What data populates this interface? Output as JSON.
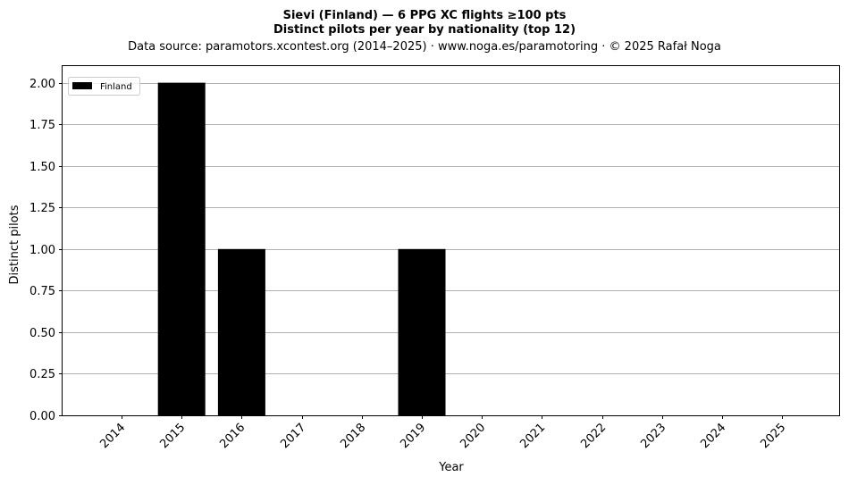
{
  "chart_data": {
    "type": "bar",
    "title_line1": "Sievi (Finland)  —  6 PPG XC flights ≥100 pts",
    "title_line2": "Distinct pilots per year by nationality (top 12)",
    "subtitle": "Data source: paramotors.xcontest.org (2014–2025)  ·  www.noga.es/paramotoring  ·  © 2025 Rafał Noga",
    "xlabel": "Year",
    "ylabel": "Distinct pilots",
    "categories": [
      "2014",
      "2015",
      "2016",
      "2017",
      "2018",
      "2019",
      "2020",
      "2021",
      "2022",
      "2023",
      "2024",
      "2025"
    ],
    "series": [
      {
        "name": "Finland",
        "color": "#000000",
        "values": [
          0,
          2,
          1,
          0,
          0,
          1,
          0,
          0,
          0,
          0,
          0,
          0
        ]
      }
    ],
    "ylim": [
      0,
      2.1
    ],
    "yticks": [
      "0.00",
      "0.25",
      "0.50",
      "0.75",
      "1.00",
      "1.25",
      "1.50",
      "1.75",
      "2.00"
    ],
    "grid": "horizontal",
    "legend_position": "top-left"
  }
}
